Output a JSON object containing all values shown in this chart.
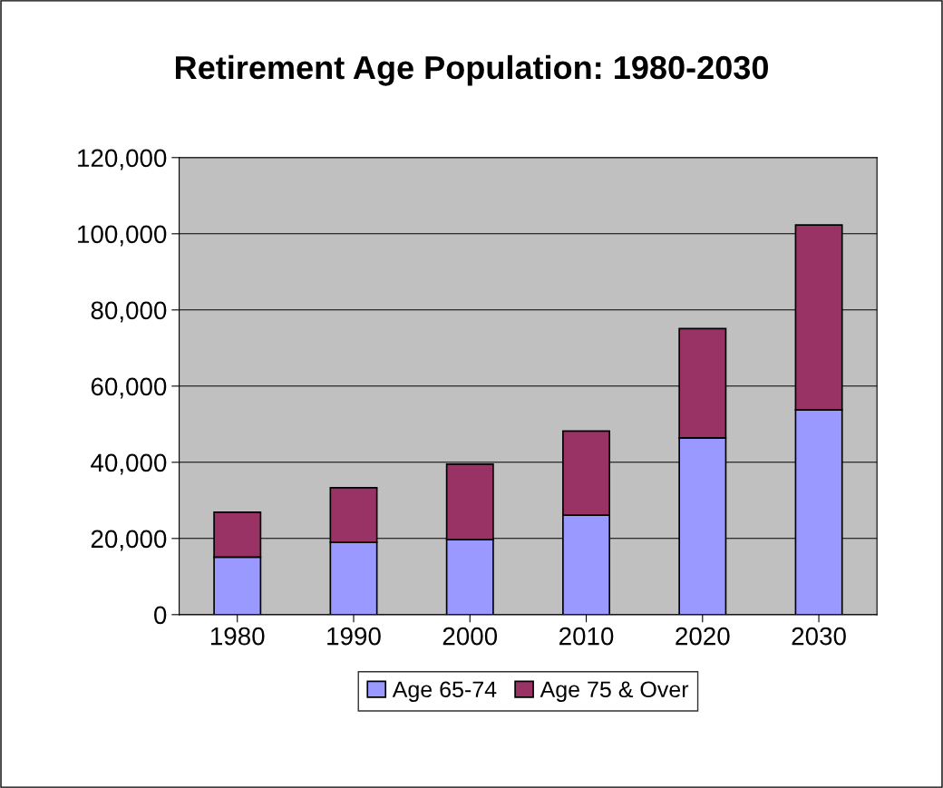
{
  "chart_data": {
    "type": "bar",
    "title": "Retirement Age Population: 1980-2030",
    "categories": [
      "1980",
      "1990",
      "2000",
      "2010",
      "2020",
      "2030"
    ],
    "stacked": true,
    "series": [
      {
        "name": "Age 65-74",
        "color": "#9999ff",
        "values": [
          15100,
          19000,
          19700,
          26100,
          46400,
          53800
        ]
      },
      {
        "name": "Age 75 & Over",
        "color": "#993366",
        "values": [
          11800,
          14300,
          19800,
          22100,
          28700,
          48500
        ]
      }
    ],
    "ylim": [
      0,
      120000
    ],
    "yticks": [
      {
        "value": 0,
        "label": "0"
      },
      {
        "value": 20000,
        "label": "20,000"
      },
      {
        "value": 40000,
        "label": "40,000"
      },
      {
        "value": 60000,
        "label": "60,000"
      },
      {
        "value": 80000,
        "label": "80,000"
      },
      {
        "value": 100000,
        "label": "100,000"
      },
      {
        "value": 120000,
        "label": "120,000"
      }
    ],
    "grid": "y",
    "legend": "bottom"
  }
}
